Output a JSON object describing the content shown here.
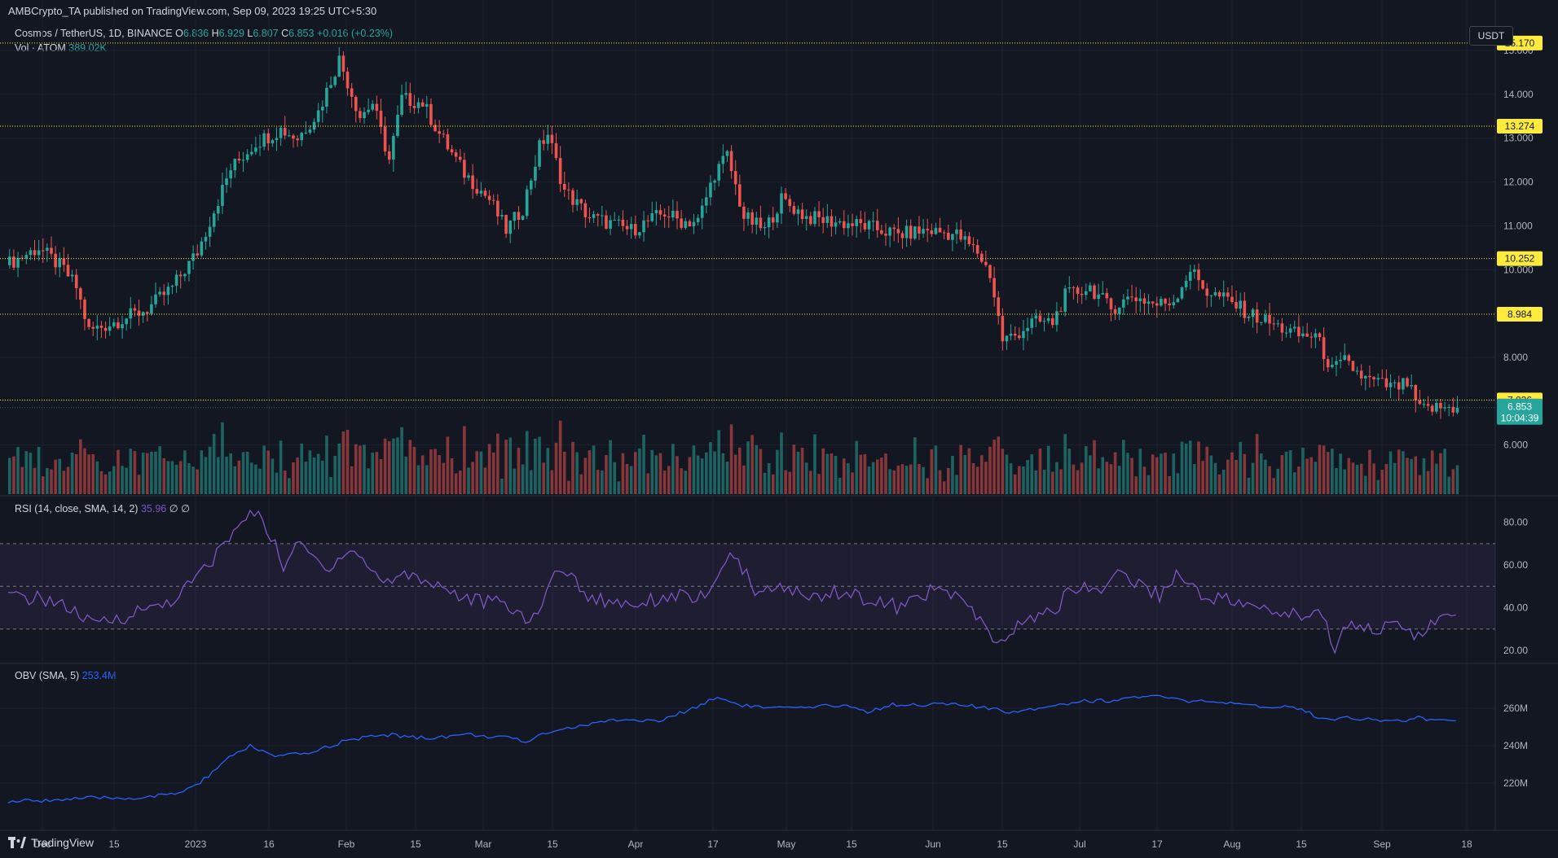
{
  "header": {
    "published": "AMBCrypto_TA published on TradingView.com, Sep 09, 2023 19:25 UTC+5:30"
  },
  "legend": {
    "symbol": "Cosmos / TetherUS, 1D, BINANCE",
    "o_label": "O",
    "o": "6.836",
    "h_label": "H",
    "h": "6.929",
    "l_label": "L",
    "l": "6.807",
    "c_label": "C",
    "c": "6.853",
    "change": "+0.016 (+0.23%)",
    "vol_label": "Vol · ATOM",
    "vol": "389.02K"
  },
  "rsi_legend": {
    "label": "RSI (14, close, SMA, 14, 2)",
    "value": "35.96",
    "extra": "∅ ∅"
  },
  "obv_legend": {
    "label": "OBV (SMA, 5)",
    "value": "253.4M"
  },
  "currency": "USDT",
  "footer": {
    "brand": "TradingView"
  },
  "colors": {
    "up": "#26a69a",
    "down": "#ef5350",
    "level": "#ffeb3b",
    "rsi": "#7e57c2",
    "obv": "#2962ff",
    "grid": "#1e222d"
  },
  "chart_data": [
    {
      "type": "candlestick",
      "title": "Cosmos / TetherUS, 1D, BINANCE",
      "x_ticks": [
        "Dec",
        "15",
        "2023",
        "16",
        "Feb",
        "15",
        "Mar",
        "15",
        "Apr",
        "17",
        "May",
        "15",
        "Jun",
        "15",
        "Jul",
        "17",
        "Aug",
        "15",
        "Sep",
        "18"
      ],
      "y_ticks": [
        "6.000",
        "7.000",
        "8.000",
        "10.000",
        "11.000",
        "12.000",
        "13.000",
        "14.000",
        "15.000"
      ],
      "ylim": [
        5.0,
        15.2
      ],
      "grid": true,
      "horizontal_levels": [
        "7.026",
        "8.984",
        "10.252",
        "13.274",
        "15.170"
      ],
      "last_price": "6.853",
      "countdown": "10:04:39",
      "anchors": [
        [
          0,
          10.1
        ],
        [
          8,
          10.5
        ],
        [
          14,
          10.0
        ],
        [
          17,
          9.6
        ],
        [
          20,
          8.6
        ],
        [
          26,
          8.8
        ],
        [
          34,
          9.1
        ],
        [
          40,
          9.6
        ],
        [
          46,
          10.4
        ],
        [
          54,
          12.3
        ],
        [
          60,
          12.9
        ],
        [
          66,
          13.2
        ],
        [
          70,
          13.0
        ],
        [
          75,
          13.6
        ],
        [
          80,
          14.8
        ],
        [
          85,
          13.5
        ],
        [
          88,
          13.8
        ],
        [
          92,
          12.5
        ],
        [
          95,
          13.9
        ],
        [
          100,
          13.8
        ],
        [
          104,
          13.1
        ],
        [
          110,
          12.2
        ],
        [
          116,
          11.6
        ],
        [
          120,
          10.9
        ],
        [
          124,
          11.4
        ],
        [
          128,
          12.8
        ],
        [
          130,
          13.1
        ],
        [
          134,
          11.8
        ],
        [
          140,
          11.2
        ],
        [
          150,
          10.9
        ],
        [
          158,
          11.3
        ],
        [
          162,
          11.1
        ],
        [
          166,
          11.1
        ],
        [
          170,
          12.2
        ],
        [
          173,
          12.6
        ],
        [
          177,
          11.2
        ],
        [
          182,
          10.9
        ],
        [
          186,
          11.6
        ],
        [
          192,
          11.2
        ],
        [
          198,
          11.1
        ],
        [
          206,
          11.0
        ],
        [
          214,
          10.8
        ],
        [
          221,
          10.9
        ],
        [
          228,
          10.8
        ],
        [
          233,
          10.4
        ],
        [
          236,
          9.9
        ],
        [
          239,
          8.4
        ],
        [
          242,
          8.5
        ],
        [
          246,
          8.8
        ],
        [
          251,
          8.8
        ],
        [
          254,
          9.4
        ],
        [
          260,
          9.6
        ],
        [
          265,
          9.1
        ],
        [
          270,
          9.4
        ],
        [
          276,
          9.2
        ],
        [
          280,
          9.3
        ],
        [
          284,
          10.0
        ],
        [
          288,
          9.5
        ],
        [
          293,
          9.3
        ],
        [
          298,
          9.0
        ],
        [
          305,
          8.7
        ],
        [
          310,
          8.5
        ],
        [
          314,
          8.5
        ],
        [
          318,
          7.7
        ],
        [
          321,
          7.9
        ],
        [
          326,
          7.5
        ],
        [
          333,
          7.3
        ],
        [
          336,
          7.4
        ],
        [
          339,
          6.8
        ],
        [
          344,
          6.85
        ],
        [
          347,
          6.85
        ]
      ],
      "volume_label": "Vol · ATOM 389.02K"
    },
    {
      "type": "line",
      "title": "RSI (14, close, SMA, 14, 2)",
      "y_ticks": [
        "80.00",
        "60.00",
        "40.00",
        "20.00"
      ],
      "ylim": [
        15,
        90
      ],
      "bands": [
        30,
        50,
        70
      ],
      "last_value": "35.96",
      "anchors": [
        [
          0,
          45
        ],
        [
          10,
          44
        ],
        [
          16,
          38
        ],
        [
          20,
          32
        ],
        [
          28,
          36
        ],
        [
          40,
          44
        ],
        [
          48,
          60
        ],
        [
          55,
          78
        ],
        [
          60,
          86
        ],
        [
          66,
          60
        ],
        [
          70,
          70
        ],
        [
          76,
          58
        ],
        [
          82,
          68
        ],
        [
          90,
          52
        ],
        [
          96,
          56
        ],
        [
          104,
          50
        ],
        [
          110,
          44
        ],
        [
          118,
          42
        ],
        [
          126,
          34
        ],
        [
          132,
          60
        ],
        [
          140,
          44
        ],
        [
          150,
          42
        ],
        [
          160,
          46
        ],
        [
          168,
          44
        ],
        [
          172,
          64
        ],
        [
          176,
          58
        ],
        [
          180,
          46
        ],
        [
          186,
          50
        ],
        [
          192,
          44
        ],
        [
          198,
          48
        ],
        [
          206,
          44
        ],
        [
          214,
          40
        ],
        [
          221,
          48
        ],
        [
          228,
          46
        ],
        [
          234,
          30
        ],
        [
          238,
          22
        ],
        [
          242,
          32
        ],
        [
          250,
          38
        ],
        [
          256,
          50
        ],
        [
          262,
          48
        ],
        [
          266,
          58
        ],
        [
          270,
          52
        ],
        [
          276,
          46
        ],
        [
          280,
          56
        ],
        [
          286,
          46
        ],
        [
          292,
          44
        ],
        [
          298,
          40
        ],
        [
          304,
          38
        ],
        [
          310,
          36
        ],
        [
          314,
          40
        ],
        [
          318,
          22
        ],
        [
          322,
          34
        ],
        [
          328,
          30
        ],
        [
          334,
          32
        ],
        [
          338,
          26
        ],
        [
          342,
          34
        ],
        [
          347,
          36
        ]
      ]
    },
    {
      "type": "line",
      "title": "OBV (SMA, 5)",
      "y_ticks": [
        "260M",
        "240M",
        "220M"
      ],
      "ylim": [
        200,
        272
      ],
      "last_value": "253.4M",
      "anchors": [
        [
          0,
          210
        ],
        [
          10,
          211
        ],
        [
          20,
          212
        ],
        [
          30,
          212
        ],
        [
          40,
          214
        ],
        [
          46,
          220
        ],
        [
          52,
          232
        ],
        [
          58,
          240
        ],
        [
          64,
          234
        ],
        [
          72,
          236
        ],
        [
          80,
          242
        ],
        [
          90,
          246
        ],
        [
          100,
          244
        ],
        [
          110,
          246
        ],
        [
          120,
          244
        ],
        [
          124,
          242
        ],
        [
          130,
          248
        ],
        [
          136,
          250
        ],
        [
          146,
          254
        ],
        [
          156,
          253
        ],
        [
          162,
          258
        ],
        [
          170,
          266
        ],
        [
          175,
          262
        ],
        [
          182,
          260
        ],
        [
          192,
          260
        ],
        [
          200,
          262
        ],
        [
          206,
          258
        ],
        [
          212,
          262
        ],
        [
          220,
          262
        ],
        [
          228,
          262
        ],
        [
          234,
          260
        ],
        [
          240,
          258
        ],
        [
          246,
          260
        ],
        [
          252,
          262
        ],
        [
          258,
          264
        ],
        [
          264,
          264
        ],
        [
          270,
          266
        ],
        [
          276,
          266
        ],
        [
          282,
          264
        ],
        [
          290,
          263
        ],
        [
          298,
          261
        ],
        [
          305,
          261
        ],
        [
          310,
          260
        ],
        [
          315,
          254
        ],
        [
          320,
          255
        ],
        [
          328,
          254
        ],
        [
          334,
          253
        ],
        [
          338,
          255
        ],
        [
          342,
          253
        ],
        [
          347,
          253.4
        ]
      ]
    }
  ]
}
